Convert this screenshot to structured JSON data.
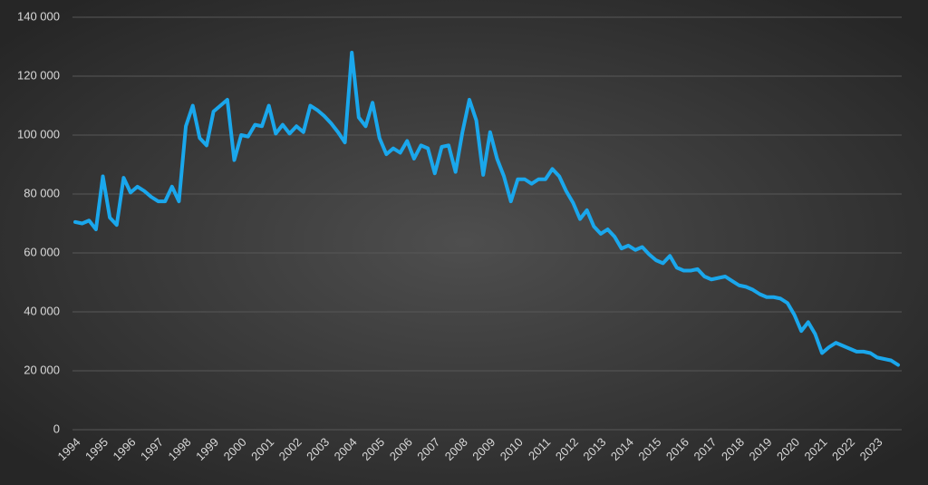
{
  "chart_data": {
    "type": "line",
    "categories": [
      "1994",
      null,
      null,
      null,
      "1995",
      null,
      null,
      null,
      "1996",
      null,
      null,
      null,
      "1997",
      null,
      null,
      null,
      "1998",
      null,
      null,
      null,
      "1999",
      null,
      null,
      null,
      "2000",
      null,
      null,
      null,
      "2001",
      null,
      null,
      null,
      "2002",
      null,
      null,
      null,
      "2003",
      null,
      null,
      null,
      "2004",
      null,
      null,
      null,
      "2005",
      null,
      null,
      null,
      "2006",
      null,
      null,
      null,
      "2007",
      null,
      null,
      null,
      "2008",
      null,
      null,
      null,
      "2009",
      null,
      null,
      null,
      "2010",
      null,
      null,
      null,
      "2011",
      null,
      null,
      null,
      "2012",
      null,
      null,
      null,
      "2013",
      null,
      null,
      null,
      "2014",
      null,
      null,
      null,
      "2015",
      null,
      null,
      null,
      "2016",
      null,
      null,
      null,
      "2017",
      null,
      null,
      null,
      "2018",
      null,
      null,
      null,
      "2019",
      null,
      null,
      null,
      "2020",
      null,
      null,
      null,
      "2021",
      null,
      null,
      null,
      "2022",
      null,
      null,
      null,
      "2023",
      null,
      null,
      null
    ],
    "values": [
      70500,
      70000,
      71000,
      68000,
      86000,
      72000,
      69500,
      85500,
      80500,
      82500,
      81000,
      79000,
      77500,
      77500,
      82500,
      77500,
      103000,
      110000,
      99000,
      96500,
      108000,
      110000,
      112000,
      91500,
      100000,
      99500,
      103500,
      103000,
      110000,
      100500,
      103500,
      100500,
      103000,
      101000,
      110000,
      108500,
      106500,
      104000,
      101000,
      97500,
      128000,
      106000,
      103000,
      111000,
      99000,
      93500,
      95500,
      94000,
      98000,
      92000,
      96500,
      95500,
      87000,
      96000,
      96500,
      87500,
      101000,
      112000,
      105000,
      86500,
      101000,
      92000,
      86000,
      77500,
      85000,
      85000,
      83500,
      85000,
      85000,
      88500,
      86000,
      81000,
      77000,
      71500,
      74500,
      69000,
      66500,
      68000,
      65500,
      61500,
      62500,
      61000,
      62000,
      59500,
      57500,
      56500,
      59000,
      55000,
      54000,
      54000,
      54500,
      52000,
      51000,
      51500,
      52000,
      50500,
      49000,
      48500,
      47500,
      46000,
      45000,
      45000,
      44500,
      43000,
      39000,
      33500,
      36500,
      32500,
      26000,
      28000,
      29500,
      28500,
      27500,
      26500,
      26500,
      26000,
      24500,
      24000,
      23500,
      22000
    ],
    "color": "#1aa7ec",
    "ylim": [
      0,
      140000
    ],
    "yticks": [
      0,
      {
        "value": 20000,
        "label": "20 000"
      },
      {
        "value": 40000,
        "label": "40 000"
      },
      {
        "value": 60000,
        "label": "60 000"
      },
      {
        "value": 80000,
        "label": "80 000"
      },
      {
        "value": 100000,
        "label": "100 000"
      },
      {
        "value": 120000,
        "label": "120 000"
      },
      {
        "value": 140000,
        "label": "140 000"
      }
    ],
    "grid": true
  }
}
